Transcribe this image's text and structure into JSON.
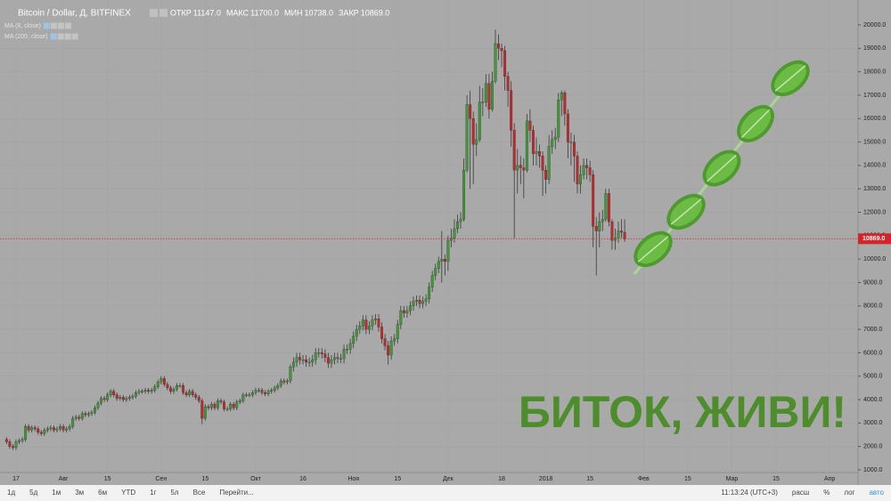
{
  "chart_data": {
    "type": "candlestick",
    "title": "Bitcoin / Dollar, Д, BITFINEX",
    "ohlc_legend": [
      {
        "label": "ОТКР",
        "value": "11147.0"
      },
      {
        "label": "МАКС",
        "value": "11700.0"
      },
      {
        "label": "МИН",
        "value": "10738.0"
      },
      {
        "label": "ЗАКР",
        "value": "10869.0"
      }
    ],
    "indicators": [
      "MA (8, close)",
      "MA (200, close)"
    ],
    "annotation": "БИТОК, ЖИВИ!",
    "up_color": "#3f9a36",
    "down_color": "#c4272c",
    "x": [
      -3,
      -2,
      -1,
      0,
      1,
      2,
      3,
      4,
      5,
      6,
      7,
      8,
      9,
      10,
      11,
      12,
      13,
      14,
      15,
      16,
      17,
      18,
      19,
      20,
      21,
      22,
      23,
      24,
      25,
      26,
      27,
      28,
      29,
      30,
      31,
      32,
      33,
      34,
      35,
      36,
      37,
      38,
      39,
      40,
      41,
      42,
      43,
      44,
      45,
      46,
      47,
      48,
      49,
      50,
      51,
      52,
      53,
      54,
      55,
      56,
      57,
      58,
      59,
      60,
      61,
      62,
      63,
      64,
      65,
      66,
      67,
      68,
      69,
      70,
      71,
      72,
      73,
      74,
      75,
      76,
      77,
      78,
      79,
      80,
      81,
      82,
      83,
      84,
      85,
      86,
      87,
      88,
      89,
      90,
      91,
      92,
      93,
      94,
      95,
      96,
      97,
      98,
      99,
      100,
      101,
      102,
      103,
      104,
      105,
      106,
      107,
      108,
      109,
      110,
      111,
      112,
      113,
      114,
      115,
      116,
      117,
      118,
      119,
      120,
      121,
      122,
      123,
      124,
      125,
      126,
      127,
      128,
      129,
      130,
      131,
      132,
      133,
      134,
      135,
      136,
      137,
      138,
      139,
      140,
      141,
      142,
      143,
      144,
      145,
      146,
      147,
      148,
      149,
      150,
      151,
      152,
      153,
      154,
      155,
      156,
      157,
      158,
      159,
      160,
      161,
      162,
      163,
      164,
      165,
      166,
      167,
      168,
      169,
      170,
      171,
      172,
      173,
      174,
      175,
      176,
      177,
      178,
      179,
      180,
      181,
      182,
      183,
      184,
      185,
      186,
      187,
      188,
      189,
      190,
      191,
      192,
      193
    ],
    "open": [
      2300,
      2200,
      2000,
      1950,
      2200,
      2250,
      2300,
      2850,
      2700,
      2800,
      2750,
      2600,
      2550,
      2700,
      2750,
      2800,
      2700,
      2750,
      2850,
      2700,
      2750,
      2850,
      3200,
      3250,
      3200,
      3400,
      3350,
      3400,
      3450,
      3650,
      3850,
      4050,
      4000,
      4200,
      4350,
      4200,
      4050,
      4100,
      4000,
      4050,
      4100,
      4150,
      4300,
      4350,
      4350,
      4400,
      4350,
      4400,
      4550,
      4750,
      4900,
      4650,
      4500,
      4350,
      4450,
      4600,
      4600,
      4300,
      4200,
      4350,
      4200,
      4100,
      3950,
      3200,
      3700,
      3650,
      3800,
      3650,
      3950,
      3900,
      3600,
      3600,
      3800,
      3650,
      3900,
      3950,
      4200,
      4200,
      4200,
      4300,
      4400,
      4400,
      4300,
      4250,
      4350,
      4400,
      4500,
      4600,
      4800,
      4750,
      4800,
      5400,
      5600,
      5800,
      5700,
      5700,
      5600,
      5600,
      5700,
      6000,
      6000,
      5950,
      5800,
      5550,
      5700,
      5800,
      5750,
      5750,
      6150,
      6150,
      6400,
      6700,
      7000,
      7150,
      7400,
      7000,
      7150,
      7400,
      7450,
      7100,
      6600,
      6300,
      5900,
      6500,
      6600,
      7200,
      7800,
      7700,
      7800,
      8000,
      8200,
      8250,
      8100,
      8200,
      8300,
      8800,
      9300,
      9600,
      9900,
      10000,
      9900,
      10800,
      10900,
      11300,
      11600,
      11700,
      13800,
      16600,
      16000,
      14900,
      15100,
      16700,
      16700,
      17500,
      16400,
      17600,
      19200,
      19000,
      18900,
      17800,
      17200,
      15500,
      13800,
      14000,
      13900,
      13800,
      15900,
      15500,
      14500,
      14600,
      14400,
      13800,
      13400,
      14800,
      15100,
      15200,
      16800,
      17100,
      16200,
      15000,
      15000,
      14400,
      13200,
      13600,
      14000,
      13900,
      13600,
      11400,
      11200,
      11600,
      11700,
      12800,
      11600,
      10800,
      10900,
      11200,
      11147
    ],
    "high": [
      2400,
      2300,
      2100,
      2300,
      2350,
      2400,
      2950,
      2950,
      2900,
      2900,
      2850,
      2700,
      2800,
      2850,
      2900,
      2900,
      2850,
      2950,
      2950,
      2850,
      2950,
      3300,
      3350,
      3350,
      3500,
      3500,
      3500,
      3550,
      3750,
      3950,
      4150,
      4150,
      4300,
      4450,
      4450,
      4300,
      4200,
      4200,
      4150,
      4200,
      4250,
      4400,
      4450,
      4450,
      4500,
      4500,
      4500,
      4650,
      4850,
      5000,
      5000,
      4750,
      4600,
      4550,
      4700,
      4700,
      4700,
      4400,
      4450,
      4450,
      4300,
      4200,
      4050,
      3800,
      3800,
      3900,
      3900,
      4050,
      4050,
      4000,
      3700,
      3900,
      3900,
      4000,
      4050,
      4300,
      4300,
      4300,
      4400,
      4500,
      4500,
      4500,
      4400,
      4450,
      4500,
      4600,
      4700,
      4900,
      4900,
      4900,
      5500,
      5800,
      6000,
      6000,
      5900,
      5900,
      5800,
      5900,
      6200,
      6200,
      6200,
      6150,
      6000,
      5900,
      6000,
      6000,
      5950,
      6350,
      6350,
      6600,
      6900,
      7200,
      7350,
      7600,
      7600,
      7350,
      7600,
      7650,
      7650,
      7300,
      6800,
      6500,
      6700,
      6800,
      7400,
      8000,
      8000,
      8000,
      8200,
      8400,
      8450,
      8450,
      8400,
      8500,
      9000,
      9500,
      9800,
      10100,
      11200,
      10200,
      11000,
      11300,
      11700,
      11900,
      12000,
      14300,
      17000,
      17200,
      16300,
      15800,
      17400,
      17300,
      17900,
      17900,
      18000,
      19800,
      19600,
      19200,
      19100,
      18000,
      17600,
      15800,
      14700,
      14400,
      14300,
      16200,
      16400,
      15700,
      15200,
      14900,
      14600,
      14000,
      15300,
      15500,
      15600,
      17100,
      17200,
      17200,
      16400,
      15400,
      15300,
      14600,
      14000,
      14300,
      14300,
      14200,
      13800,
      11800,
      12000,
      12100,
      13000,
      13000,
      11700,
      11300,
      11600,
      11700,
      11700
    ],
    "low": [
      2100,
      1900,
      1850,
      1850,
      2100,
      2150,
      2200,
      2600,
      2600,
      2650,
      2500,
      2450,
      2450,
      2600,
      2650,
      2600,
      2600,
      2650,
      2600,
      2600,
      2650,
      2750,
      3100,
      3100,
      3100,
      3250,
      3250,
      3300,
      3350,
      3550,
      3750,
      3900,
      3900,
      4100,
      4100,
      3950,
      3950,
      3900,
      3900,
      3950,
      4000,
      4050,
      4200,
      4250,
      4250,
      4250,
      4250,
      4300,
      4450,
      4650,
      4550,
      4400,
      4250,
      4250,
      4350,
      4500,
      4200,
      4100,
      4100,
      4100,
      4000,
      3850,
      2950,
      3100,
      3550,
      3550,
      3550,
      3550,
      3800,
      3500,
      3500,
      3500,
      3550,
      3550,
      3800,
      3850,
      4100,
      4100,
      4100,
      4200,
      4300,
      4200,
      4150,
      4150,
      4250,
      4300,
      4400,
      4500,
      4650,
      4650,
      4700,
      5200,
      5400,
      5500,
      5500,
      5400,
      5400,
      5400,
      5500,
      5800,
      5750,
      5600,
      5350,
      5350,
      5500,
      5550,
      5550,
      5550,
      5950,
      5950,
      6200,
      6500,
      6800,
      6950,
      6800,
      6800,
      6950,
      7200,
      6900,
      6400,
      6100,
      5500,
      5700,
      6300,
      6400,
      7000,
      7500,
      7500,
      7600,
      7800,
      8000,
      7900,
      7900,
      8000,
      8100,
      8600,
      9100,
      9400,
      9000,
      9300,
      9500,
      10500,
      10700,
      11100,
      11300,
      11600,
      13700,
      13000,
      13200,
      14400,
      15000,
      16100,
      16500,
      16000,
      16300,
      17500,
      18500,
      18200,
      17200,
      16500,
      14800,
      10900,
      12800,
      13200,
      12600,
      13700,
      15000,
      14000,
      14000,
      13900,
      12700,
      12800,
      13200,
      14500,
      14700,
      15000,
      16100,
      15700,
      14300,
      14000,
      13300,
      12800,
      12800,
      13400,
      13400,
      13300,
      10500,
      9300,
      10500,
      11200,
      11600,
      11400,
      10400,
      10400,
      10700,
      10900,
      10738
    ],
    "close": [
      2200,
      2000,
      1950,
      2200,
      2250,
      2300,
      2850,
      2700,
      2800,
      2750,
      2600,
      2550,
      2700,
      2750,
      2800,
      2700,
      2750,
      2850,
      2700,
      2750,
      2850,
      3200,
      3250,
      3200,
      3400,
      3350,
      3400,
      3450,
      3650,
      3850,
      4050,
      4000,
      4200,
      4350,
      4200,
      4050,
      4100,
      4000,
      4050,
      4100,
      4150,
      4300,
      4350,
      4350,
      4400,
      4350,
      4400,
      4550,
      4750,
      4900,
      4650,
      4500,
      4350,
      4450,
      4600,
      4600,
      4300,
      4200,
      4350,
      4200,
      4100,
      3950,
      3200,
      3700,
      3650,
      3800,
      3650,
      3950,
      3900,
      3600,
      3600,
      3800,
      3650,
      3900,
      3950,
      4200,
      4200,
      4200,
      4300,
      4400,
      4400,
      4300,
      4250,
      4350,
      4400,
      4500,
      4600,
      4800,
      4750,
      4800,
      5400,
      5600,
      5800,
      5700,
      5700,
      5600,
      5600,
      5700,
      6000,
      6000,
      5950,
      5800,
      5550,
      5700,
      5800,
      5750,
      5750,
      6150,
      6150,
      6400,
      6700,
      7000,
      7150,
      7400,
      7000,
      7150,
      7400,
      7450,
      7100,
      6600,
      6300,
      5900,
      6500,
      6600,
      7200,
      7800,
      7700,
      7800,
      8000,
      8200,
      8250,
      8100,
      8200,
      8300,
      8800,
      9300,
      9600,
      9900,
      10000,
      9900,
      10800,
      10900,
      11300,
      11600,
      11700,
      13800,
      16600,
      16000,
      14900,
      15100,
      16700,
      16700,
      17500,
      16400,
      17600,
      19200,
      19000,
      18900,
      17800,
      17200,
      15500,
      13800,
      14000,
      13900,
      13800,
      15900,
      15500,
      14500,
      14600,
      14400,
      13800,
      13400,
      14800,
      15100,
      15200,
      16800,
      17100,
      16200,
      15000,
      15000,
      14400,
      13200,
      13600,
      14000,
      13900,
      13600,
      11400,
      11200,
      11600,
      11700,
      12800,
      11600,
      10800,
      10900,
      11200,
      11147,
      10869
    ],
    "last_price": {
      "value": 10869,
      "label": "10869.0"
    },
    "xlim": [
      -5.08,
      267
    ],
    "ylim": [
      544,
      21064
    ],
    "xticks": [
      {
        "value": 0,
        "label": "17"
      },
      {
        "value": 15,
        "label": "Авг"
      },
      {
        "value": 29,
        "label": "15"
      },
      {
        "value": 46,
        "label": "Сен"
      },
      {
        "value": 60,
        "label": "15"
      },
      {
        "value": 76,
        "label": "Окт"
      },
      {
        "value": 91,
        "label": "16"
      },
      {
        "value": 107,
        "label": "Ноя"
      },
      {
        "value": 121,
        "label": "15"
      },
      {
        "value": 137,
        "label": "Дек"
      },
      {
        "value": 154,
        "label": "18"
      },
      {
        "value": 168,
        "label": "2018"
      },
      {
        "value": 182,
        "label": "15"
      },
      {
        "value": 199,
        "label": "Фев"
      },
      {
        "value": 213,
        "label": "15"
      },
      {
        "value": 227,
        "label": "Мар"
      },
      {
        "value": 241,
        "label": "15"
      },
      {
        "value": 258,
        "label": "Апр"
      }
    ],
    "yticks": [
      {
        "value": 1000,
        "label": "1000.0"
      },
      {
        "value": 2000,
        "label": "2000.0"
      },
      {
        "value": 3000,
        "label": "3000.0"
      },
      {
        "value": 4000,
        "label": "4000.0"
      },
      {
        "value": 5000,
        "label": "5000.0"
      },
      {
        "value": 6000,
        "label": "6000.0"
      },
      {
        "value": 7000,
        "label": "7000.0"
      },
      {
        "value": 8000,
        "label": "8000.0"
      },
      {
        "value": 9000,
        "label": "9000.0"
      },
      {
        "value": 10000,
        "label": "10000.0"
      },
      {
        "value": 11000,
        "label": "11000.0"
      },
      {
        "value": 12000,
        "label": "12000.0"
      },
      {
        "value": 13000,
        "label": "13000.0"
      },
      {
        "value": 14000,
        "label": "14000.0"
      },
      {
        "value": 15000,
        "label": "15000.0"
      },
      {
        "value": 16000,
        "label": "16000.0"
      },
      {
        "value": 17000,
        "label": "17000.0"
      },
      {
        "value": 18000,
        "label": "18000.0"
      },
      {
        "value": 19000,
        "label": "19000.0"
      },
      {
        "value": 20000,
        "label": "20000.0"
      }
    ],
    "grid": true,
    "toolbar": {
      "left": [
        "1д",
        "5д",
        "1м",
        "3м",
        "6м",
        "YTD",
        "1г",
        "5л",
        "Все",
        "Перейти..."
      ],
      "right": [
        "11:13:24 (UTC+3)",
        "расш",
        "%",
        "лог",
        "авто"
      ]
    }
  }
}
